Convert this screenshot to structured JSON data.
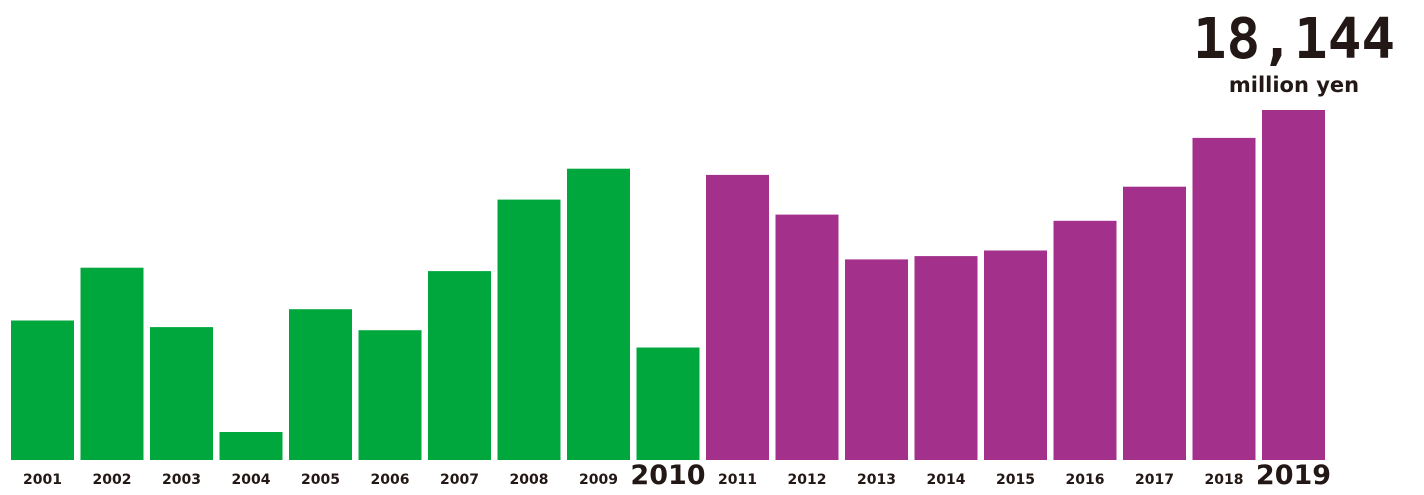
{
  "chart_data": {
    "type": "bar",
    "categories": [
      "2001",
      "2002",
      "2003",
      "2004",
      "2005",
      "2006",
      "2007",
      "2008",
      "2009",
      "2010",
      "2011",
      "2012",
      "2013",
      "2014",
      "2015",
      "2016",
      "2017",
      "2018",
      "2019"
    ],
    "values": [
      7230,
      9970,
      6890,
      1450,
      7820,
      6730,
      9790,
      13500,
      15100,
      5830,
      14780,
      12720,
      10400,
      10570,
      10860,
      12400,
      14170,
      16700,
      18144
    ],
    "highlighted_categories": [
      "2010",
      "2019"
    ],
    "colors": {
      "green": "#00A73C",
      "purple": "#A3308A",
      "text": "#231815"
    },
    "segments": [
      {
        "from": "2001",
        "to": "2010",
        "color": "#00A73C"
      },
      {
        "from": "2011",
        "to": "2019",
        "color": "#A3308A"
      }
    ],
    "annotation": {
      "value": "18,144",
      "unit": "million yen"
    },
    "xlabel": "",
    "ylabel": "",
    "ylim": [
      0,
      18144
    ],
    "grid": false,
    "legend": "none"
  }
}
